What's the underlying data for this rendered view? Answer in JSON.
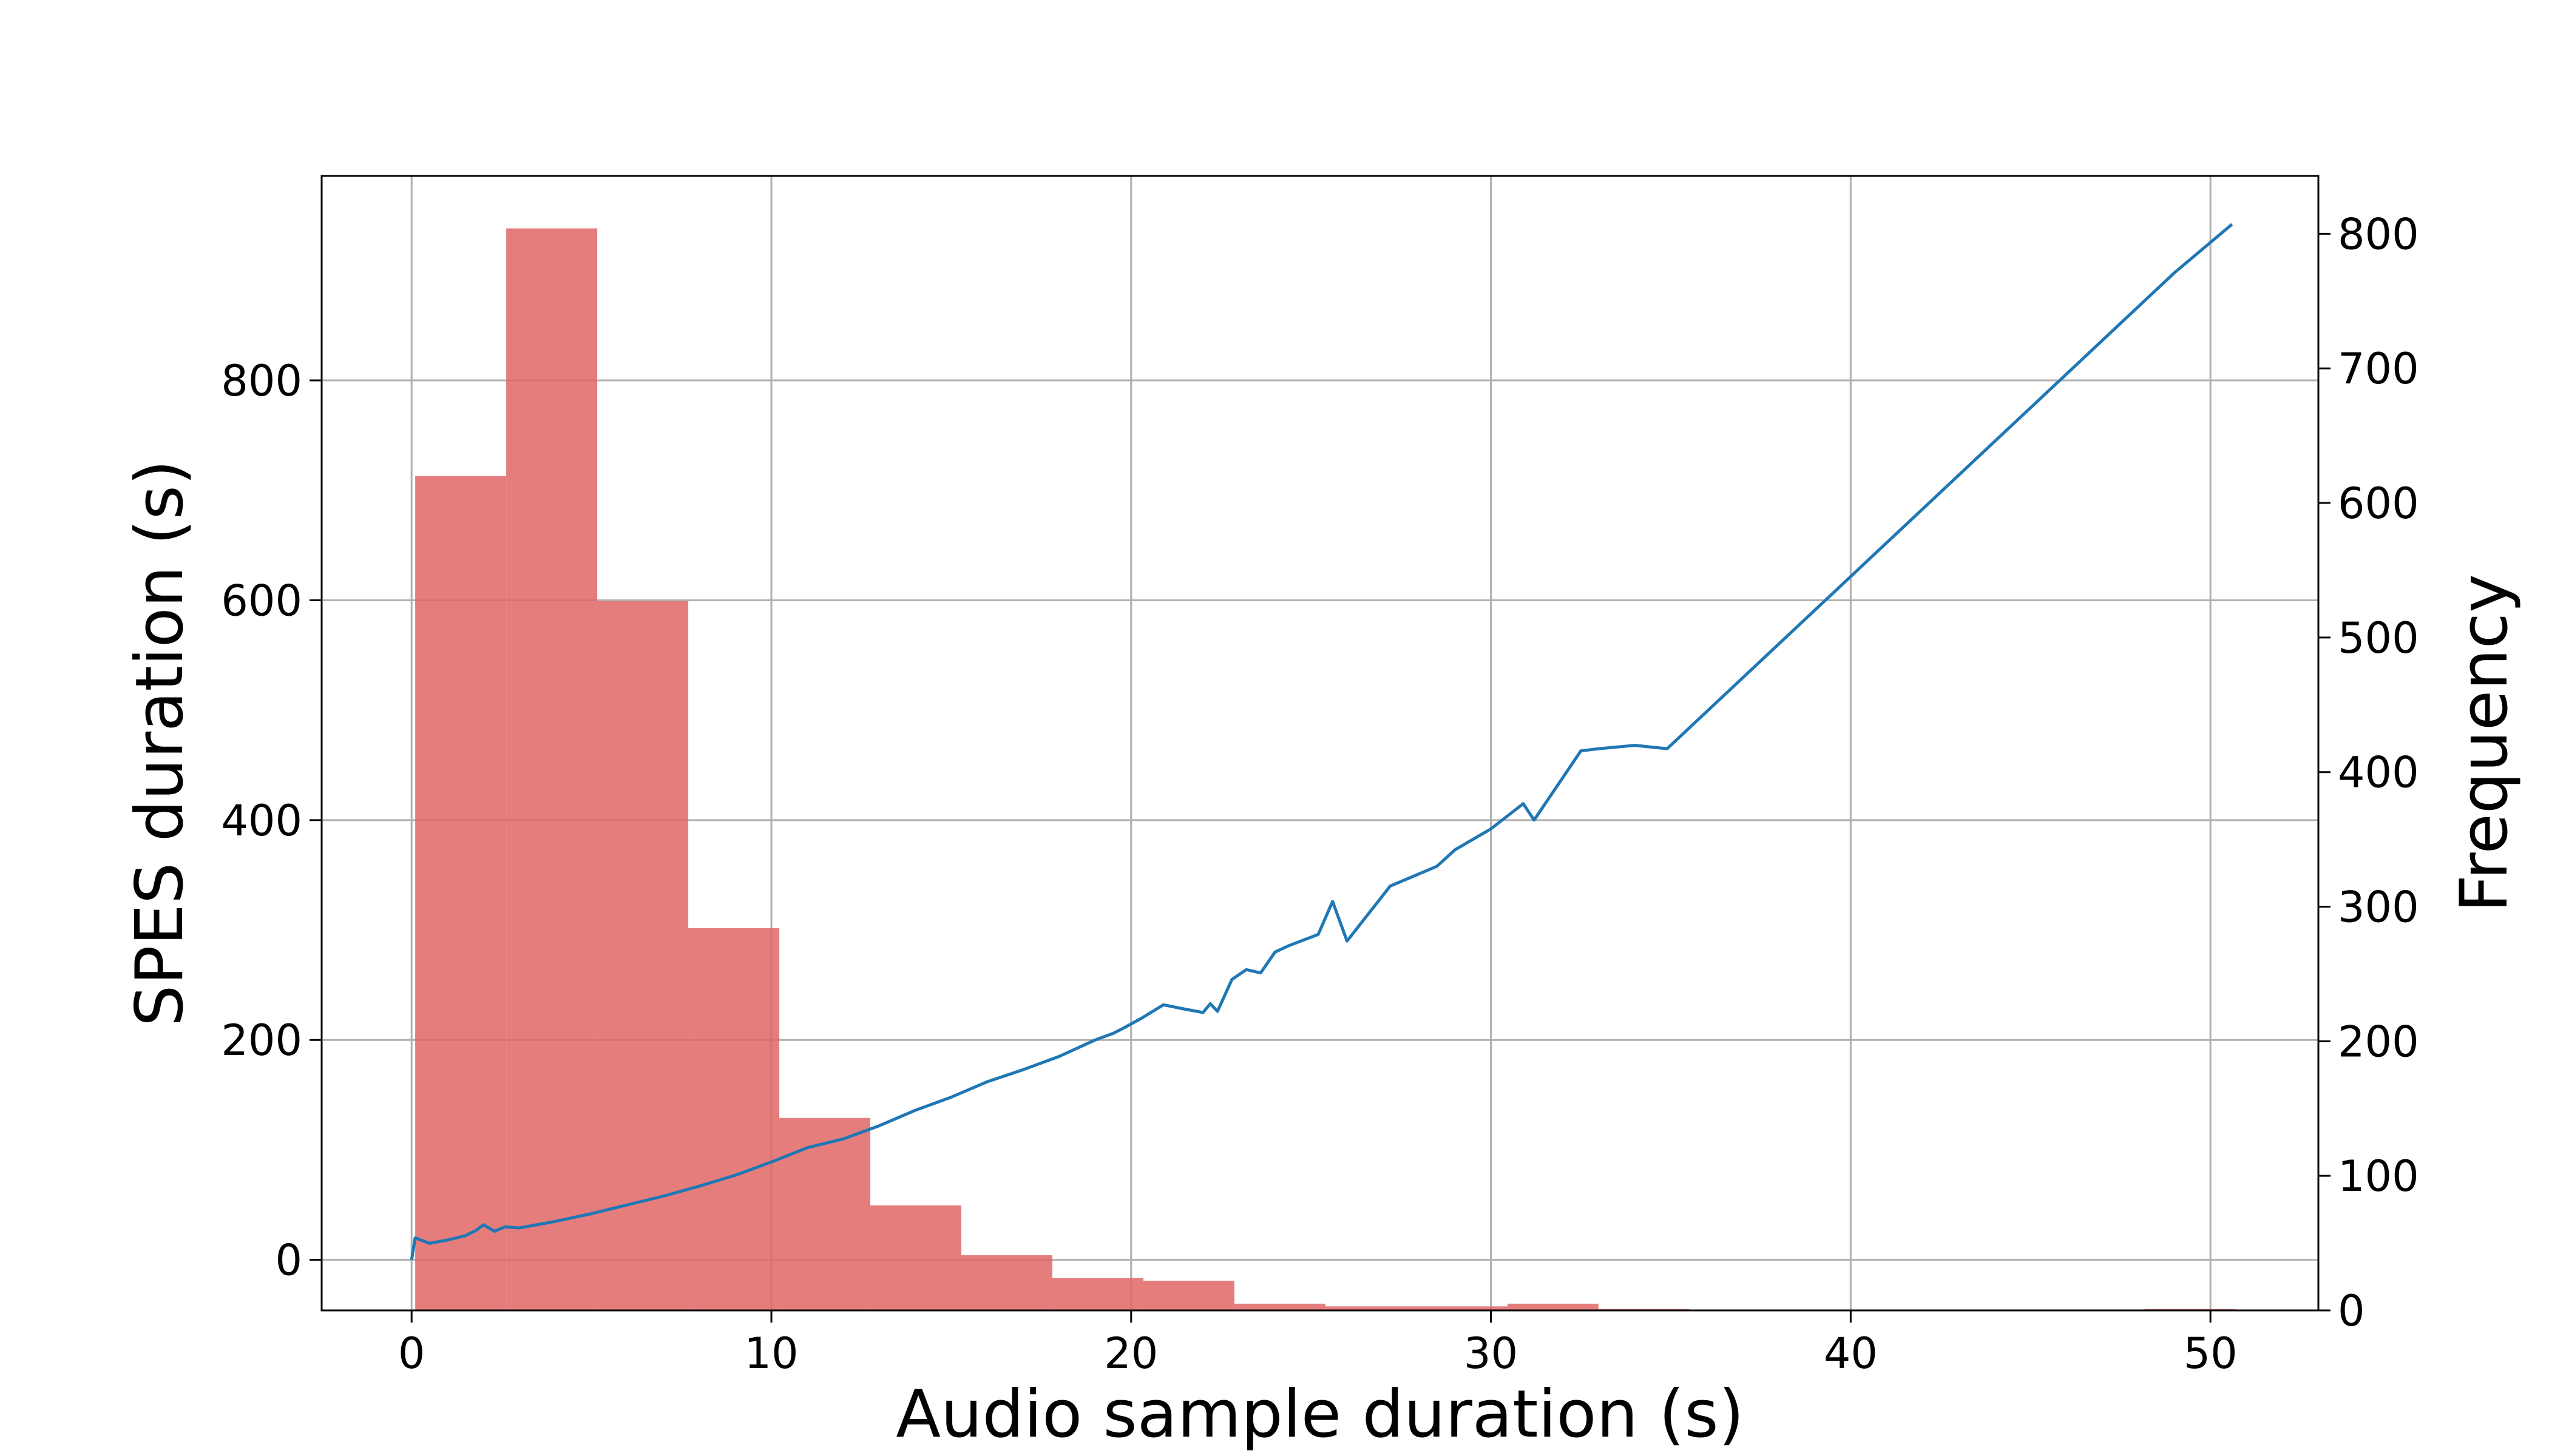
{
  "chart_data": {
    "type": "bar+line",
    "title": "",
    "xlabel": "Audio sample duration (s)",
    "ylabel_left": "SPES duration (s)",
    "ylabel_right": "Frequency",
    "xlim": [
      -2.5,
      53.0
    ],
    "ylim_left": [
      -46,
      986
    ],
    "ylim_right": [
      0,
      843
    ],
    "x_ticks": [
      0,
      10,
      20,
      30,
      40,
      50
    ],
    "y_left_ticks": [
      0,
      200,
      400,
      600,
      800
    ],
    "y_right_ticks": [
      0,
      100,
      200,
      300,
      400,
      500,
      600,
      700,
      800
    ],
    "grid": true,
    "colors": {
      "histogram": "#e06666",
      "line": "#1f77b4"
    },
    "histogram": {
      "name": "",
      "axis": "right",
      "bin_width": 2.53,
      "bins": [
        {
          "x0": 0.1,
          "x1": 2.63,
          "count": 620
        },
        {
          "x0": 2.63,
          "x1": 5.16,
          "count": 804
        },
        {
          "x0": 5.16,
          "x1": 7.69,
          "count": 527
        },
        {
          "x0": 7.69,
          "x1": 10.22,
          "count": 284
        },
        {
          "x0": 10.22,
          "x1": 12.75,
          "count": 143
        },
        {
          "x0": 12.75,
          "x1": 15.28,
          "count": 78
        },
        {
          "x0": 15.28,
          "x1": 17.81,
          "count": 41
        },
        {
          "x0": 17.81,
          "x1": 20.34,
          "count": 24
        },
        {
          "x0": 20.34,
          "x1": 22.87,
          "count": 22
        },
        {
          "x0": 22.87,
          "x1": 25.4,
          "count": 5
        },
        {
          "x0": 25.4,
          "x1": 27.93,
          "count": 3
        },
        {
          "x0": 27.93,
          "x1": 30.46,
          "count": 3
        },
        {
          "x0": 30.46,
          "x1": 32.99,
          "count": 5
        },
        {
          "x0": 32.99,
          "x1": 35.52,
          "count": 1
        },
        {
          "x0": 48.17,
          "x1": 50.7,
          "count": 1
        }
      ]
    },
    "series": [
      {
        "name": "",
        "axis": "left",
        "x": [
          0.0,
          0.1,
          0.5,
          1.0,
          1.5,
          1.8,
          2.0,
          2.3,
          2.6,
          3.0,
          4.0,
          5.0,
          6.0,
          7.0,
          8.0,
          9.0,
          10.0,
          11.0,
          12.0,
          13.0,
          14.0,
          15.0,
          16.0,
          17.0,
          18.0,
          19.0,
          19.5,
          19.8,
          20.3,
          20.5,
          20.9,
          21.5,
          22.0,
          22.2,
          22.4,
          22.8,
          23.2,
          23.6,
          24.0,
          24.4,
          25.2,
          25.6,
          26.0,
          27.2,
          28.5,
          29.0,
          30.0,
          30.9,
          31.2,
          32.5,
          33.0,
          34.0,
          34.9,
          49.0,
          50.6
        ],
        "y": [
          0,
          20,
          15,
          18,
          22,
          27,
          32,
          26,
          30,
          29,
          35,
          42,
          50,
          58,
          67,
          77,
          89,
          102,
          110,
          122,
          136,
          148,
          162,
          173,
          185,
          200,
          206,
          211,
          220,
          224,
          232,
          228,
          225,
          233,
          226,
          255,
          264,
          261,
          280,
          286,
          296,
          326,
          290,
          340,
          358,
          373,
          392,
          415,
          400,
          463,
          465,
          468,
          465,
          898,
          942
        ]
      }
    ]
  }
}
